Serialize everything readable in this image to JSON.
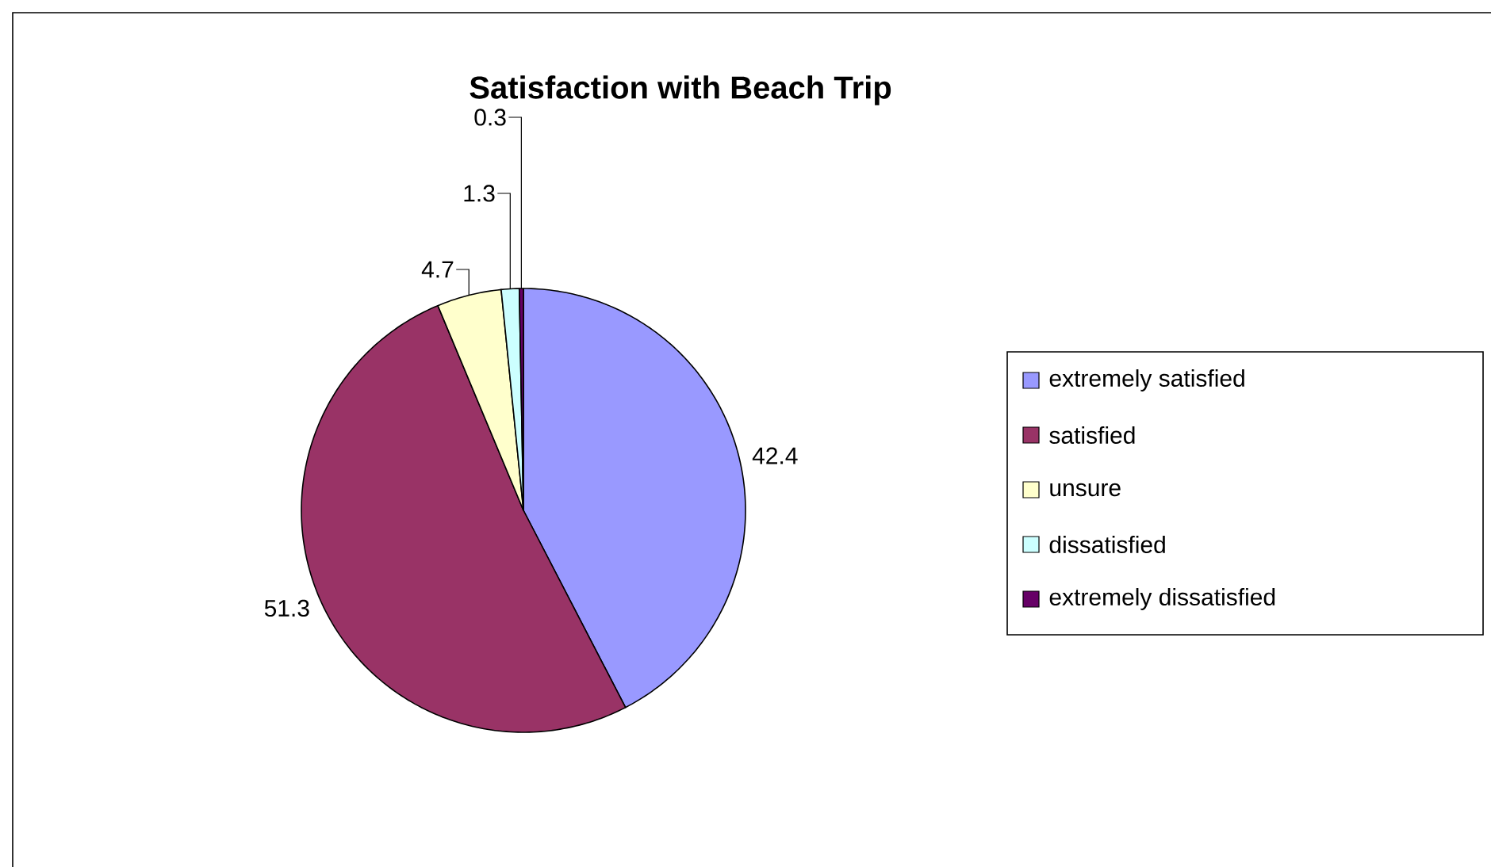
{
  "chart_data": {
    "type": "pie",
    "title": "Satisfaction with Beach Trip",
    "categories": [
      "extremely satisfied",
      "satisfied",
      "unsure",
      "dissatisfied",
      "extremely dissatisfied"
    ],
    "values": [
      42.4,
      51.3,
      4.7,
      1.3,
      0.3
    ],
    "colors": [
      "#9999ff",
      "#993366",
      "#ffffcc",
      "#ccffff",
      "#660066"
    ],
    "data_labels": true,
    "legend": "right"
  }
}
